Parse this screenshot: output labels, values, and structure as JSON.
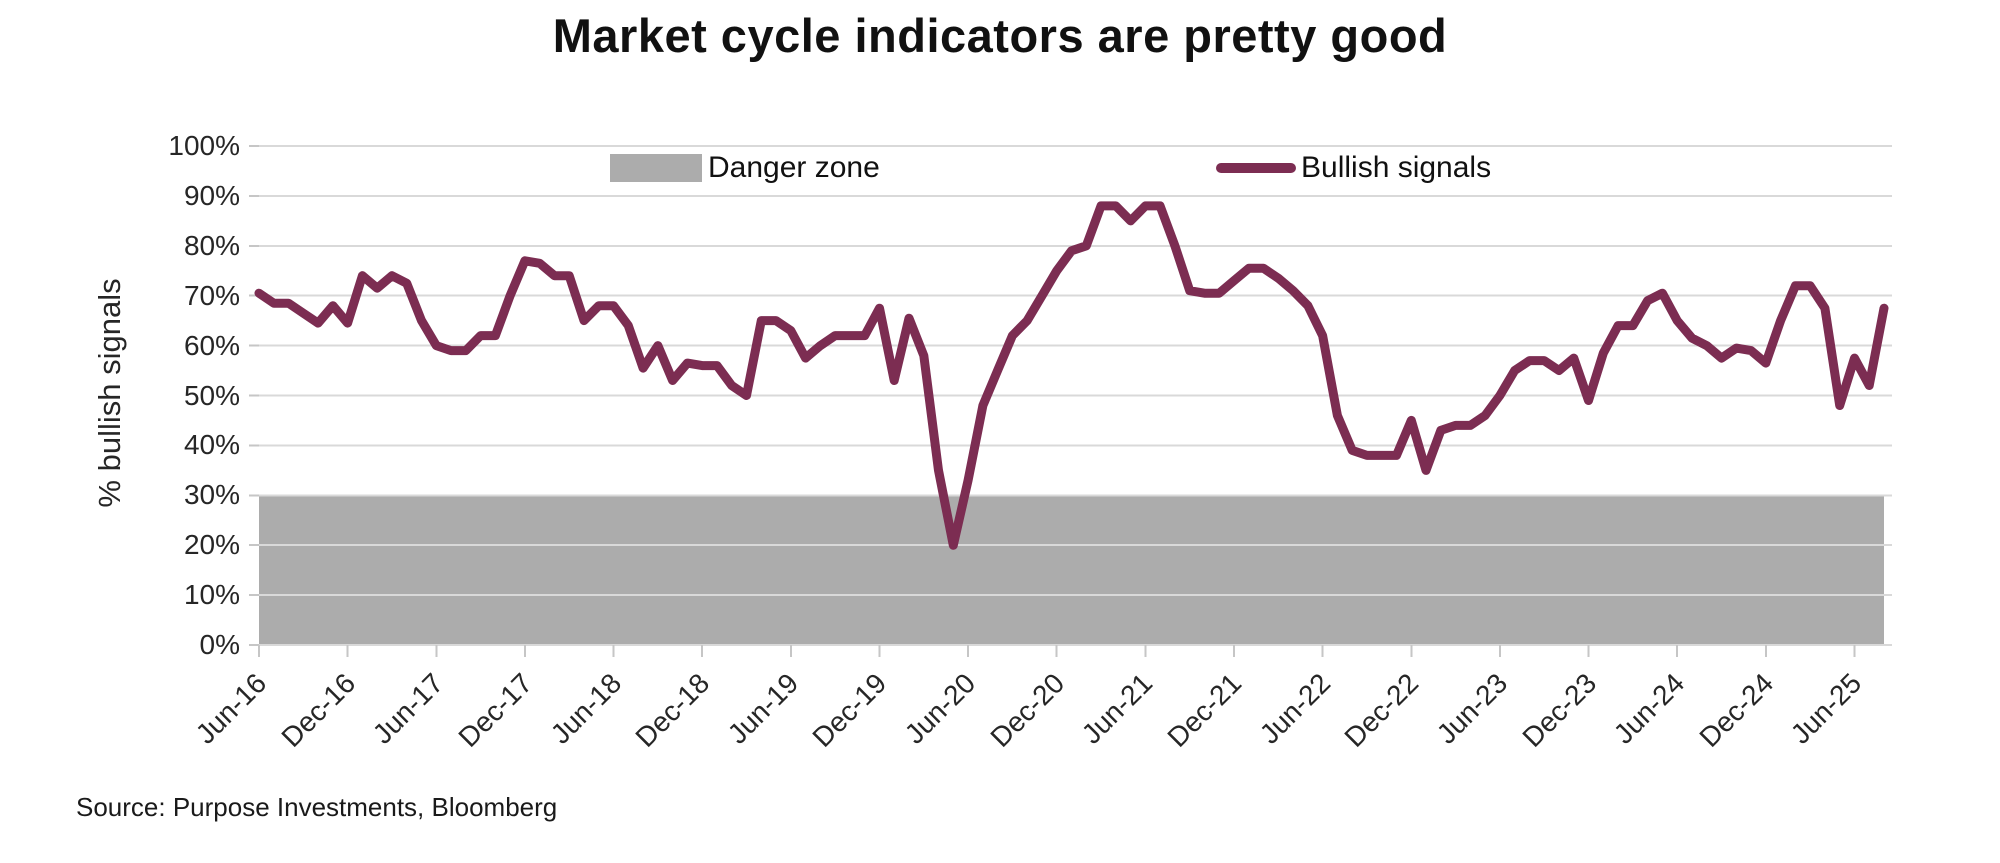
{
  "title": "Market cycle indicators are pretty good",
  "source": "Source: Purpose Investments, Bloomberg",
  "legend": {
    "items": [
      {
        "label": "Danger zone",
        "type": "area",
        "color": "#ACACAC"
      },
      {
        "label": "Bullish signals",
        "type": "line",
        "color": "#7C2D52"
      }
    ]
  },
  "chart_data": {
    "type": "line",
    "title": "Market cycle indicators are pretty good",
    "xlabel": "",
    "ylabel": "% bullish signals",
    "ylim": [
      0,
      100
    ],
    "grid": "horizontal",
    "gridline_color": "#D9D9D9",
    "legend_position": "top-inside",
    "y_tick_labels": [
      "0%",
      "10%",
      "20%",
      "30%",
      "40%",
      "50%",
      "60%",
      "70%",
      "80%",
      "90%",
      "100%"
    ],
    "x_tick_labels": [
      "Jun-16",
      "Dec-16",
      "Jun-17",
      "Dec-17",
      "Jun-18",
      "Dec-18",
      "Jun-19",
      "Dec-19",
      "Jun-20",
      "Dec-20",
      "Jun-21",
      "Dec-21",
      "Jun-22",
      "Dec-22",
      "Jun-23",
      "Dec-23",
      "Jun-24",
      "Dec-24",
      "Jun-25"
    ],
    "x_tick_interval_months": 6,
    "danger_zone": {
      "label": "Danger zone",
      "color": "#ACACAC",
      "from": 0,
      "to": 30
    },
    "series": [
      {
        "name": "Bullish signals",
        "color": "#7C2D52",
        "frequency": "monthly",
        "start": "Jun-16",
        "end": "Aug-25",
        "values": [
          70.5,
          68.5,
          68.5,
          66.5,
          64.5,
          68,
          64.5,
          74,
          71.5,
          74,
          72.5,
          65,
          60,
          59,
          59,
          62,
          62,
          70,
          77,
          76.5,
          74,
          74,
          65,
          68,
          68,
          64,
          55.5,
          60,
          53,
          56.5,
          56,
          56,
          52,
          50,
          65,
          65,
          63,
          57.5,
          60,
          62,
          62,
          62,
          67.5,
          53,
          65.5,
          58,
          35,
          20,
          33,
          48,
          55,
          62,
          65,
          70,
          75,
          79,
          80,
          88,
          88,
          85,
          88,
          88,
          80,
          71,
          70.5,
          70.5,
          73,
          75.5,
          75.5,
          73.5,
          71,
          68,
          62,
          46,
          39,
          38,
          38,
          38,
          45,
          35,
          43,
          44,
          44,
          46,
          50,
          55,
          57,
          57,
          55,
          57.5,
          49,
          58.5,
          64,
          64,
          69,
          70.5,
          65,
          61.5,
          60,
          57.5,
          59.5,
          59,
          56.5,
          65,
          72,
          72,
          67.5,
          48,
          57.5,
          52,
          67.5
        ]
      }
    ]
  }
}
